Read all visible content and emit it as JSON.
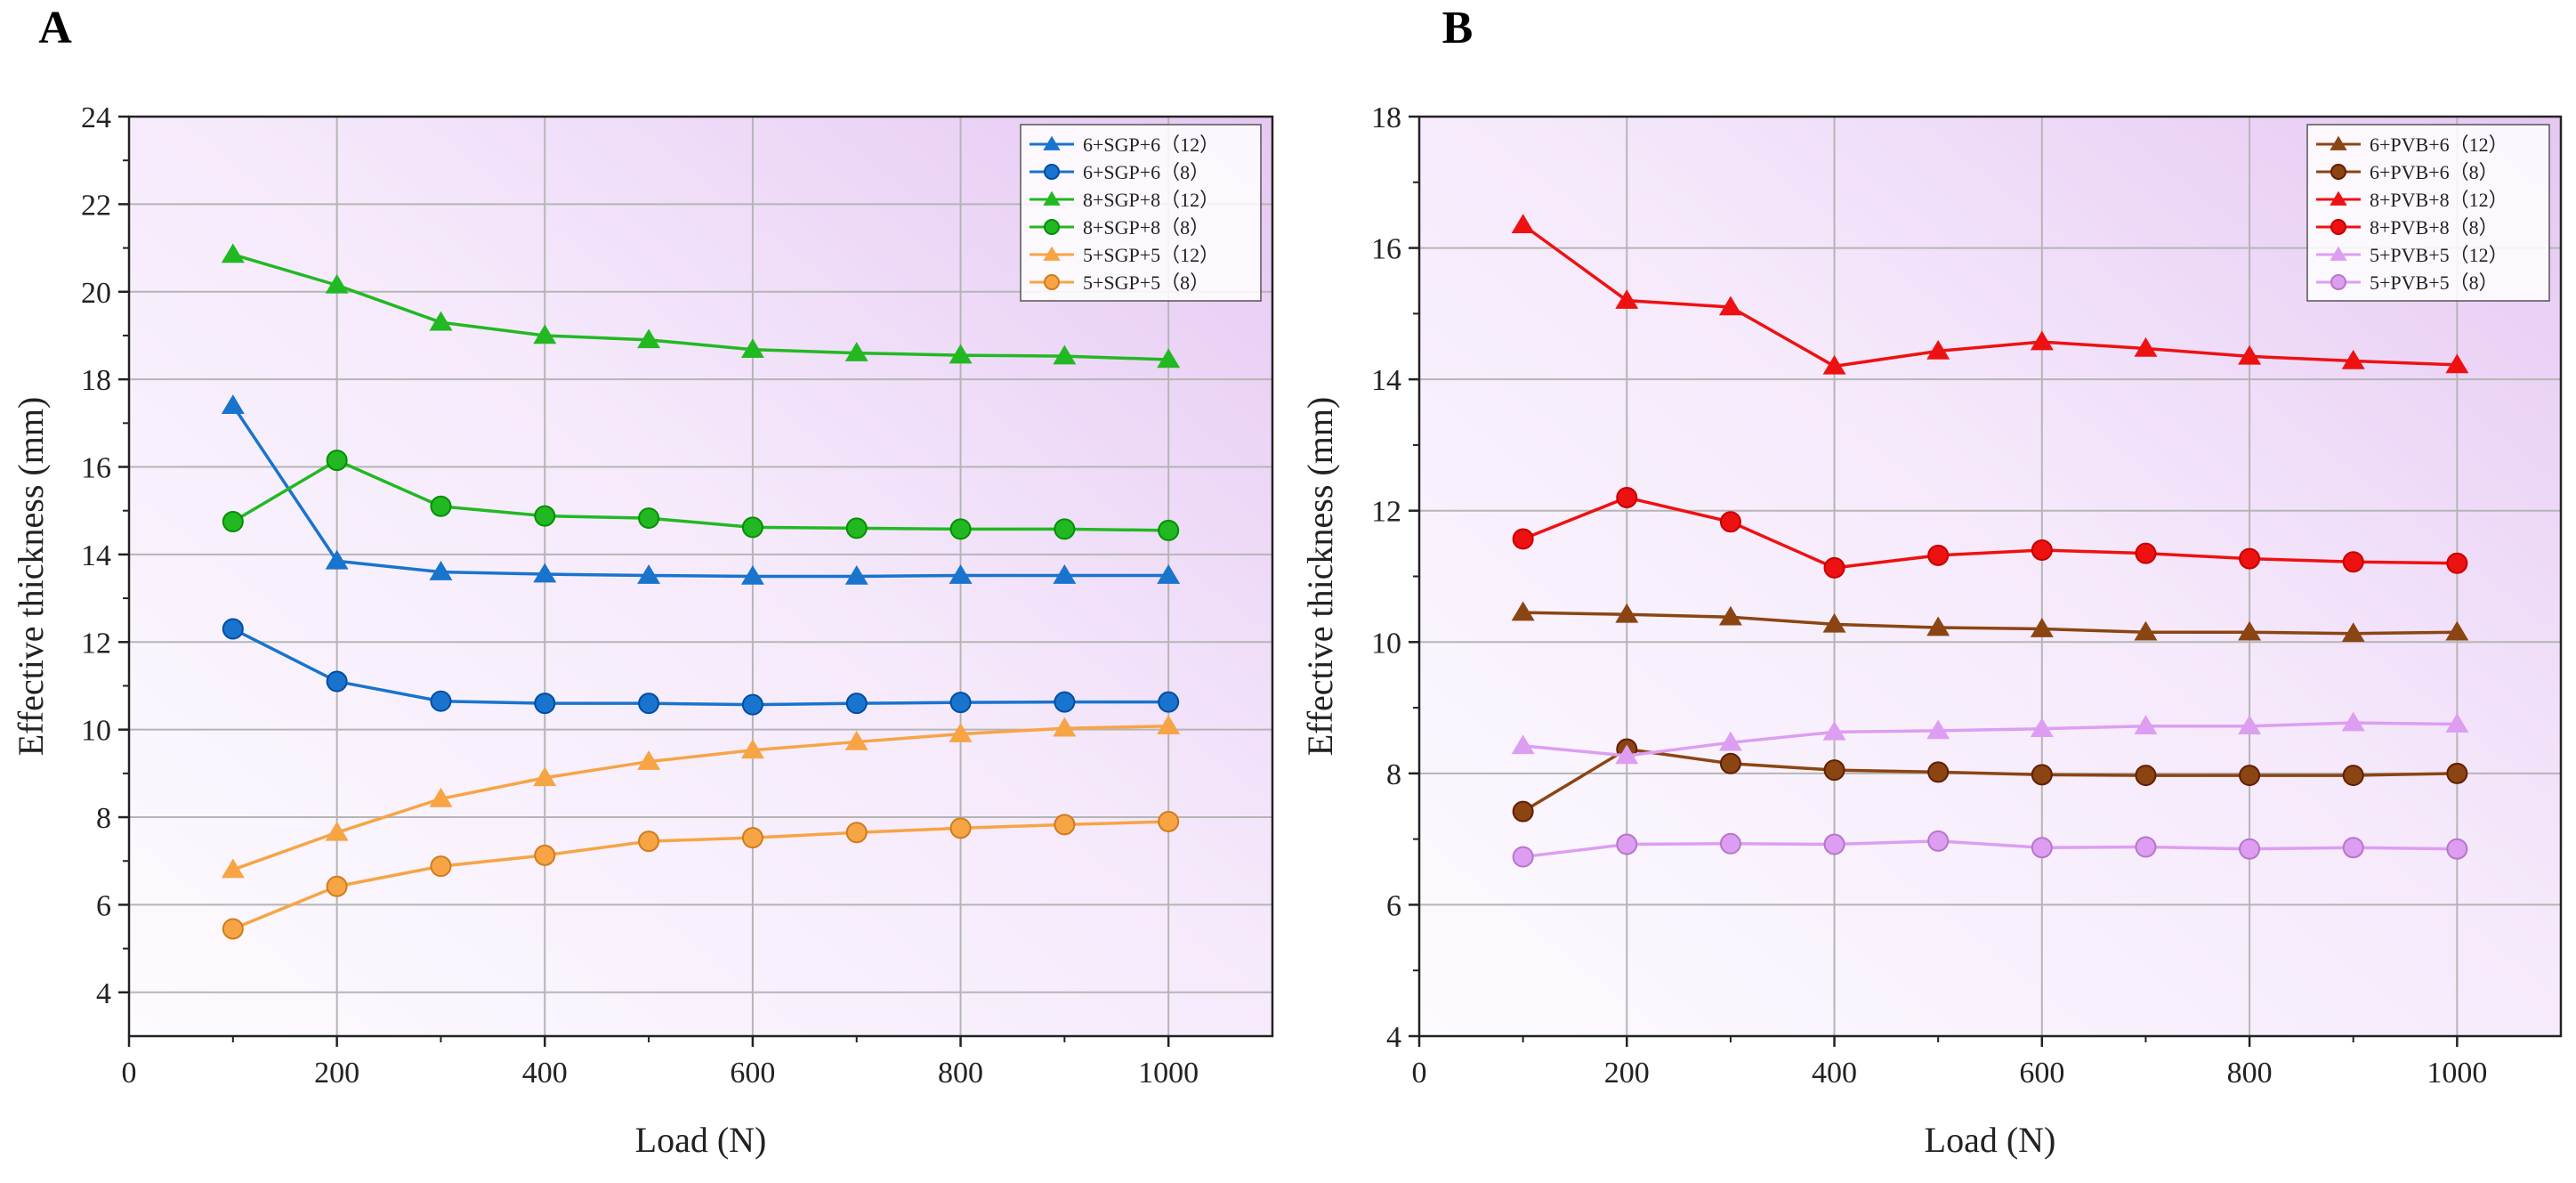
{
  "figure": {
    "panels": [
      "A",
      "B"
    ]
  },
  "chart_data": [
    {
      "panel": "A",
      "type": "line",
      "title": "",
      "xlabel": "Load (N)",
      "ylabel": "Effective thickness (mm)",
      "xlim": [
        0,
        1100
      ],
      "ylim": [
        3,
        24
      ],
      "xticks": [
        0,
        200,
        400,
        600,
        800,
        1000
      ],
      "yticks": [
        4,
        6,
        8,
        10,
        12,
        14,
        16,
        18,
        20,
        22,
        24
      ],
      "grid": true,
      "legend_position": "top-right",
      "x": [
        100,
        200,
        300,
        400,
        500,
        600,
        700,
        800,
        900,
        1000
      ],
      "series": [
        {
          "name": "6+SGP+6（12）",
          "color": "#1874cd",
          "marker": "triangle",
          "values": [
            17.4,
            13.85,
            13.6,
            13.55,
            13.52,
            13.5,
            13.5,
            13.52,
            13.52,
            13.52
          ]
        },
        {
          "name": "6+SGP+6（8）",
          "color": "#1874cd",
          "marker": "circle",
          "values": [
            12.3,
            11.1,
            10.65,
            10.6,
            10.6,
            10.57,
            10.6,
            10.62,
            10.63,
            10.63
          ]
        },
        {
          "name": "8+SGP+8（12）",
          "color": "#22b822",
          "marker": "triangle",
          "values": [
            20.85,
            20.15,
            19.3,
            19.0,
            18.9,
            18.68,
            18.6,
            18.55,
            18.53,
            18.45
          ]
        },
        {
          "name": "8+SGP+8（8）",
          "color": "#22b822",
          "marker": "circle",
          "values": [
            14.75,
            16.15,
            15.1,
            14.88,
            14.83,
            14.62,
            14.6,
            14.58,
            14.58,
            14.55
          ]
        },
        {
          "name": "5+SGP+5（12）",
          "color": "#f7a445",
          "marker": "triangle",
          "values": [
            6.8,
            7.65,
            8.42,
            8.9,
            9.27,
            9.53,
            9.72,
            9.9,
            10.03,
            10.08
          ]
        },
        {
          "name": "5+SGP+5（8）",
          "color": "#f7a445",
          "marker": "circle",
          "values": [
            5.45,
            6.42,
            6.88,
            7.13,
            7.45,
            7.53,
            7.65,
            7.75,
            7.83,
            7.9
          ]
        }
      ]
    },
    {
      "panel": "B",
      "type": "line",
      "title": "",
      "xlabel": "Load (N)",
      "ylabel": "Effective thickness (mm)",
      "xlim": [
        0,
        1100
      ],
      "ylim": [
        4,
        18
      ],
      "xticks": [
        0,
        200,
        400,
        600,
        800,
        1000
      ],
      "yticks": [
        4,
        6,
        8,
        10,
        12,
        14,
        16,
        18
      ],
      "grid": true,
      "legend_position": "top-right",
      "x": [
        100,
        200,
        300,
        400,
        500,
        600,
        700,
        800,
        900,
        1000
      ],
      "series": [
        {
          "name": "6+PVB+6（12）",
          "color": "#8b4513",
          "marker": "triangle",
          "values": [
            10.45,
            10.42,
            10.38,
            10.27,
            10.22,
            10.2,
            10.15,
            10.15,
            10.13,
            10.15
          ]
        },
        {
          "name": "6+PVB+6（8）",
          "color": "#8b4513",
          "marker": "circle",
          "values": [
            7.42,
            8.37,
            8.15,
            8.05,
            8.02,
            7.98,
            7.97,
            7.97,
            7.97,
            8.0
          ]
        },
        {
          "name": "8+PVB+8（12）",
          "color": "#ee1111",
          "marker": "triangle",
          "values": [
            16.35,
            15.2,
            15.1,
            14.2,
            14.43,
            14.57,
            14.47,
            14.35,
            14.28,
            14.22
          ]
        },
        {
          "name": "8+PVB+8（8）",
          "color": "#ee1111",
          "marker": "circle",
          "values": [
            11.57,
            12.2,
            11.83,
            11.13,
            11.32,
            11.4,
            11.35,
            11.27,
            11.22,
            11.2
          ]
        },
        {
          "name": "5+PVB+5（12）",
          "color": "#dd9ef2",
          "marker": "triangle",
          "values": [
            8.42,
            8.27,
            8.47,
            8.63,
            8.65,
            8.68,
            8.72,
            8.72,
            8.77,
            8.75
          ]
        },
        {
          "name": "5+PVB+5（8）",
          "color": "#dd9ef2",
          "marker": "circle",
          "values": [
            6.73,
            6.92,
            6.93,
            6.92,
            6.97,
            6.87,
            6.88,
            6.85,
            6.87,
            6.85
          ]
        }
      ]
    }
  ]
}
